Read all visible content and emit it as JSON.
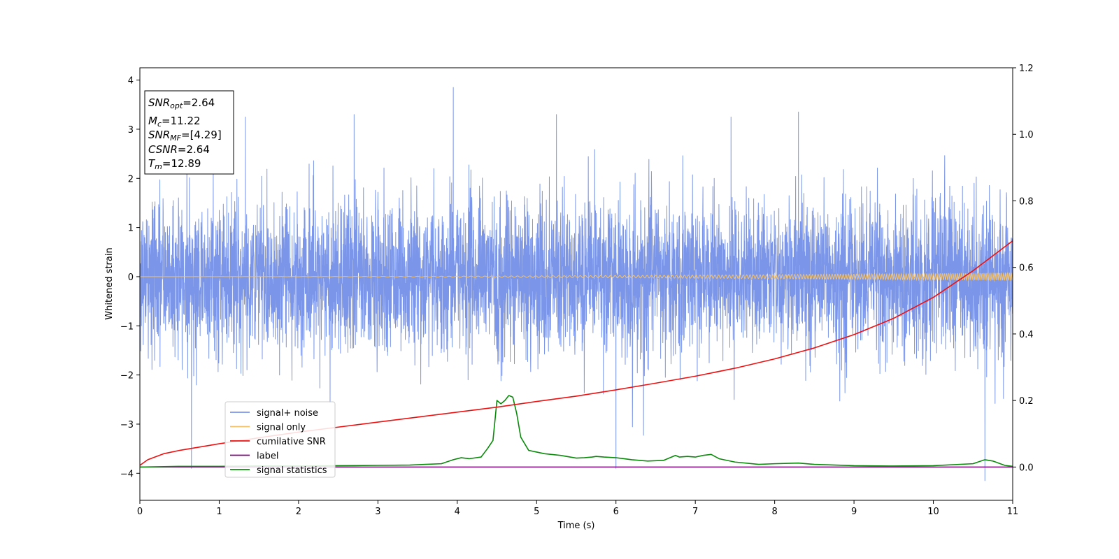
{
  "chart_data": {
    "type": "line",
    "title": "",
    "xlabel": "Time (s)",
    "ylabel": "Whitened strain",
    "xlim": [
      0,
      11
    ],
    "ylim_left": [
      -4.55,
      4.25
    ],
    "ylim_right": [
      -0.1,
      1.2
    ],
    "x_ticks": [
      "0",
      "1",
      "2",
      "3",
      "4",
      "5",
      "6",
      "7",
      "8",
      "9",
      "10",
      "11"
    ],
    "y_left_ticks": [
      "4",
      "3",
      "2",
      "1",
      "0",
      "−1",
      "−2",
      "−3",
      "−4"
    ],
    "y_left_tick_values": [
      4,
      3,
      2,
      1,
      0,
      -1,
      -2,
      -3,
      -4
    ],
    "y_right_ticks": [
      "1.2",
      "1.0",
      "0.8",
      "0.6",
      "0.4",
      "0.2",
      "0.0"
    ],
    "y_right_tick_values": [
      1.2,
      1.0,
      0.8,
      0.6,
      0.4,
      0.2,
      0.0
    ],
    "grid": false,
    "legend_placement": "lower-left",
    "info_box": {
      "snr_opt": {
        "main": "SNR",
        "sub": "opt",
        "value": "=2.64"
      },
      "mc": {
        "main": "M",
        "sub": "c",
        "value": "=11.22"
      },
      "snr_mf": {
        "main": "SNR",
        "sub": "MF",
        "value": "=[4.29]"
      },
      "csnr": {
        "main": "CSNR",
        "value": "=2.64"
      },
      "tm": {
        "main": "T",
        "sub": "m",
        "value": "=12.89"
      }
    },
    "series": [
      {
        "name": "signal+ noise",
        "axis": "left",
        "color": "#7b96e8",
        "kind": "noise",
        "amplitude_typical": 1.8,
        "max": 3.85,
        "min": -4.15
      },
      {
        "name": "signal only",
        "axis": "left",
        "color": "#f5c26b",
        "kind": "chirp",
        "amplitude_end": 0.08
      },
      {
        "name": "cumilative SNR",
        "axis": "right",
        "color": "#ee1111",
        "x": [
          0,
          0.1,
          0.3,
          0.5,
          1,
          1.5,
          2,
          2.5,
          3,
          3.5,
          4,
          4.5,
          5,
          5.5,
          6,
          6.5,
          7,
          7.5,
          8,
          8.5,
          9,
          9.5,
          10,
          10.5,
          11
        ],
        "y": [
          0.005,
          0.022,
          0.04,
          0.05,
          0.07,
          0.088,
          0.105,
          0.12,
          0.135,
          0.15,
          0.165,
          0.18,
          0.197,
          0.213,
          0.232,
          0.252,
          0.273,
          0.297,
          0.325,
          0.358,
          0.398,
          0.447,
          0.51,
          0.59,
          0.68
        ]
      },
      {
        "name": "label",
        "axis": "right",
        "color": "#800080",
        "x": [
          0,
          11
        ],
        "y": [
          0,
          0
        ]
      },
      {
        "name": "signal statistics",
        "axis": "right",
        "color": "#0a8a0a",
        "x": [
          0,
          0.5,
          1,
          1.5,
          2,
          2.5,
          3,
          3.4,
          3.6,
          3.8,
          3.95,
          4.05,
          4.15,
          4.3,
          4.38,
          4.45,
          4.5,
          4.55,
          4.6,
          4.65,
          4.7,
          4.75,
          4.8,
          4.9,
          5.0,
          5.1,
          5.3,
          5.5,
          5.6,
          5.7,
          5.75,
          5.85,
          6.0,
          6.1,
          6.2,
          6.4,
          6.6,
          6.75,
          6.8,
          6.9,
          7.0,
          7.1,
          7.2,
          7.3,
          7.5,
          7.8,
          8.0,
          8.3,
          8.5,
          9.0,
          9.5,
          10.0,
          10.5,
          10.65,
          10.75,
          10.9,
          11.0
        ],
        "y": [
          0.0,
          0.002,
          0.002,
          0.003,
          0.003,
          0.004,
          0.005,
          0.006,
          0.008,
          0.01,
          0.022,
          0.028,
          0.025,
          0.03,
          0.055,
          0.08,
          0.2,
          0.19,
          0.2,
          0.215,
          0.21,
          0.16,
          0.09,
          0.05,
          0.045,
          0.04,
          0.035,
          0.027,
          0.028,
          0.03,
          0.032,
          0.03,
          0.028,
          0.025,
          0.022,
          0.018,
          0.02,
          0.035,
          0.03,
          0.032,
          0.03,
          0.035,
          0.038,
          0.025,
          0.015,
          0.008,
          0.01,
          0.012,
          0.008,
          0.004,
          0.003,
          0.004,
          0.01,
          0.022,
          0.018,
          0.005,
          0.002
        ]
      }
    ]
  }
}
